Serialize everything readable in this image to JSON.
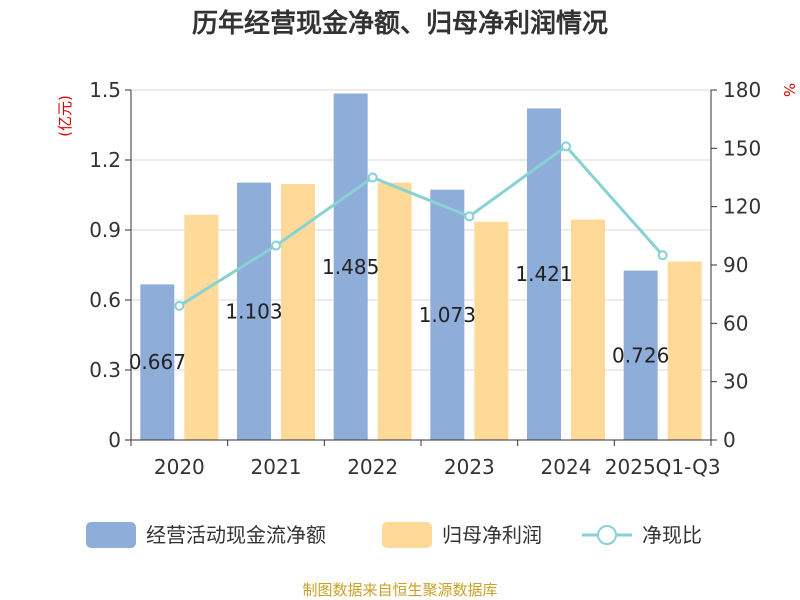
{
  "chart_data": {
    "type": "bar",
    "title": "历年经营现金净额、归母净利润情况",
    "categories": [
      "2020",
      "2021",
      "2022",
      "2023",
      "2024",
      "2025Q1-Q3"
    ],
    "y_left": {
      "unit": "(亿元)",
      "ylim": [
        0,
        1.5
      ],
      "ticks": [
        "0",
        "0.3",
        "0.6",
        "0.9",
        "1.2",
        "1.5"
      ]
    },
    "y_right": {
      "unit": "%",
      "ylim": [
        0,
        180
      ],
      "ticks": [
        "0",
        "30",
        "60",
        "90",
        "120",
        "150",
        "180"
      ]
    },
    "series": [
      {
        "name": "经营活动现金流净额",
        "kind": "bar",
        "axis": "left",
        "color": "#8fadd9",
        "values": [
          0.667,
          1.103,
          1.485,
          1.073,
          1.421,
          0.726
        ],
        "labels": [
          "0.667",
          "1.103",
          "1.485",
          "1.073",
          "1.421",
          "0.726"
        ]
      },
      {
        "name": "归母净利润",
        "kind": "bar",
        "axis": "left",
        "color": "#ffd998",
        "values": [
          0.965,
          1.097,
          1.103,
          0.935,
          0.945,
          0.765
        ]
      },
      {
        "name": "净现比",
        "kind": "line",
        "axis": "right",
        "color": "#88d1d4",
        "values": [
          69,
          100,
          135,
          115,
          151,
          95
        ]
      }
    ],
    "grid": true,
    "legend": "bottom"
  },
  "source_note": "制图数据来自恒生聚源数据库"
}
